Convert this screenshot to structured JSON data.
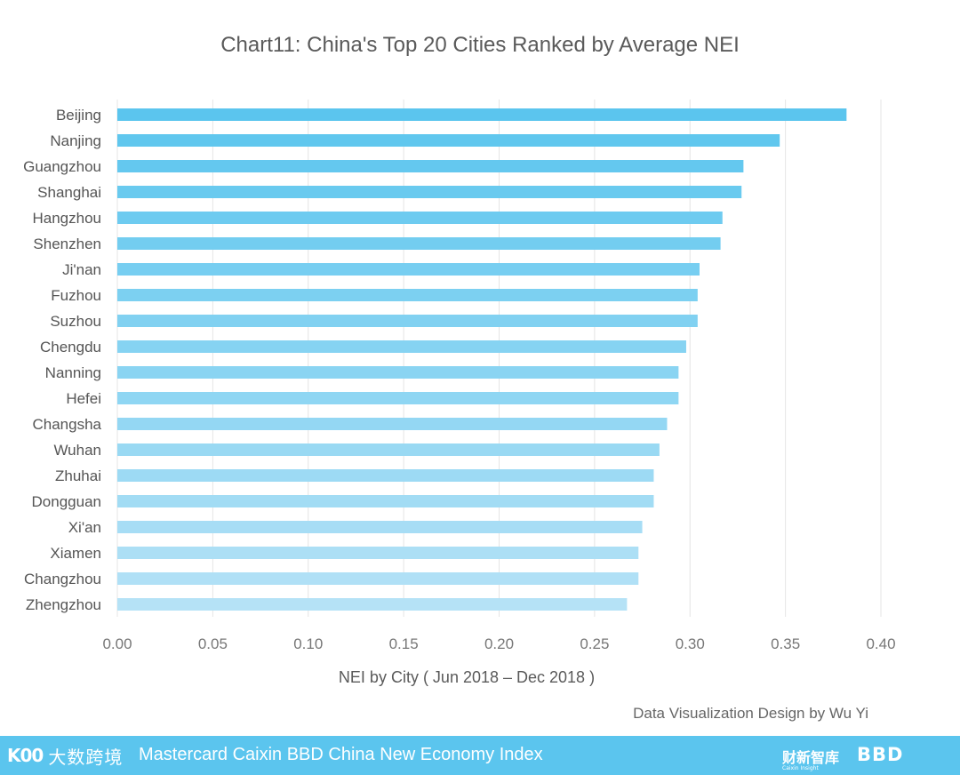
{
  "chart_data": {
    "type": "bar",
    "orientation": "horizontal",
    "title": "Chart11:  China's Top 20 Cities Ranked by Average NEI",
    "xlabel": "NEI by City ( Jun 2018 – Dec 2018 )",
    "ylabel": "",
    "xlim": [
      0,
      0.4
    ],
    "ticks": [
      "0.00",
      "0.05",
      "0.10",
      "0.15",
      "0.20",
      "0.25",
      "0.30",
      "0.35",
      "0.40"
    ],
    "grid": "vertical",
    "categories": [
      "Beijing",
      "Nanjing",
      "Guangzhou",
      "Shanghai",
      "Hangzhou",
      "Shenzhen",
      "Ji'nan",
      "Fuzhou",
      "Suzhou",
      "Chengdu",
      "Nanning",
      "Hefei",
      "Changsha",
      "Wuhan",
      "Zhuhai",
      "Dongguan",
      "Xi'an",
      "Xiamen",
      "Changzhou",
      "Zhengzhou"
    ],
    "values": [
      0.382,
      0.347,
      0.328,
      0.327,
      0.317,
      0.316,
      0.305,
      0.304,
      0.304,
      0.298,
      0.294,
      0.294,
      0.288,
      0.284,
      0.281,
      0.281,
      0.275,
      0.273,
      0.273,
      0.267
    ],
    "bar_color_start": "#5bc5ee",
    "bar_color_end": "#b5e2f6"
  },
  "credit": "Data Visualization Design by Wu Yi",
  "footer": {
    "logo_left_mark": "K00",
    "logo_left_cn": "大数跨境",
    "title": "Mastercard Caixin BBD China New Economy Index",
    "logo_mid": "财新智库",
    "logo_mid_sub": "Caixin Insight",
    "logo_right": "BBD",
    "background": "#5bc5ee"
  }
}
